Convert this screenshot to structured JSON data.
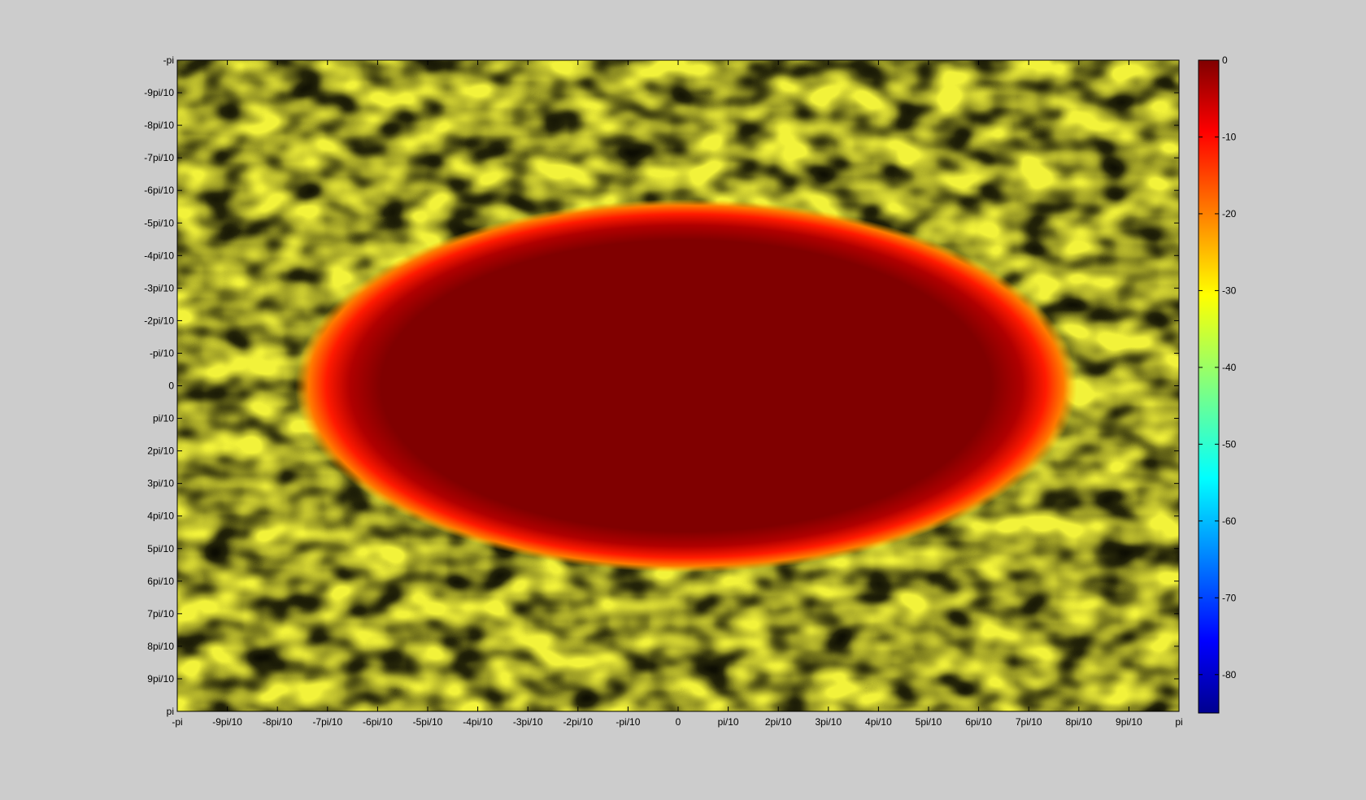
{
  "chart_data": {
    "type": "heatmap",
    "title": "",
    "xlabel": "",
    "ylabel": "",
    "colormap": "jet",
    "x_range": [
      -3.14159,
      3.14159
    ],
    "y_range": [
      -3.14159,
      3.14159
    ],
    "y_direction": "top-to-bottom",
    "x_tick_labels": [
      "-pi",
      "-9pi/10",
      "-8pi/10",
      "-7pi/10",
      "-6pi/10",
      "-5pi/10",
      "-4pi/10",
      "-3pi/10",
      "-2pi/10",
      "-pi/10",
      "0",
      "pi/10",
      "2pi/10",
      "3pi/10",
      "4pi/10",
      "5pi/10",
      "6pi/10",
      "7pi/10",
      "8pi/10",
      "9pi/10",
      "pi"
    ],
    "y_tick_labels": [
      "-pi",
      "-9pi/10",
      "-8pi/10",
      "-7pi/10",
      "-6pi/10",
      "-5pi/10",
      "-4pi/10",
      "-3pi/10",
      "-2pi/10",
      "-pi/10",
      "0",
      "pi/10",
      "2pi/10",
      "3pi/10",
      "4pi/10",
      "5pi/10",
      "6pi/10",
      "7pi/10",
      "8pi/10",
      "9pi/10",
      "pi"
    ],
    "colorbar": {
      "range": [
        -85,
        0
      ],
      "tick_values": [
        0,
        -10,
        -20,
        -30,
        -40,
        -50,
        -60,
        -70,
        -80
      ],
      "tick_labels": [
        "0",
        "-10",
        "-20",
        "-30",
        "-40",
        "-50",
        "-60",
        "-70",
        "-80"
      ]
    },
    "central_region": {
      "shape": "ellipse",
      "center_x": 0.05,
      "center_y": 0.0,
      "semi_axis_x": 2.19,
      "semi_axis_y": 1.58,
      "value": 0
    },
    "background_value_range": [
      -50,
      -20
    ],
    "grid": false
  }
}
